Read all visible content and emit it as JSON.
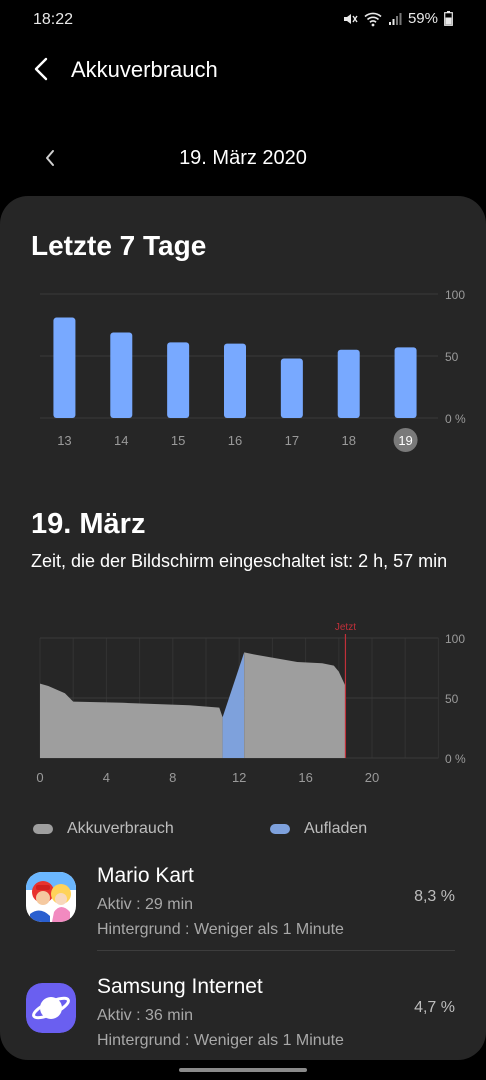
{
  "status_bar": {
    "time": "18:22",
    "battery": "59%"
  },
  "header": {
    "title": "Akkuverbrauch"
  },
  "date_nav": {
    "date": "19. März 2020"
  },
  "weekly": {
    "title": "Letzte 7 Tage"
  },
  "daily": {
    "title": "19. März",
    "screen_time": "Zeit, die der Bildschirm eingeschaltet ist: 2 h, 57 min"
  },
  "legend": {
    "usage": "Akkuverbrauch",
    "charging": "Aufladen"
  },
  "apps": [
    {
      "name": "Mario Kart",
      "active": "Aktiv : 29 min",
      "background": "Hintergrund : Weniger als 1 Minute",
      "percent": "8,3 %"
    },
    {
      "name": "Samsung Internet",
      "active": "Aktiv : 36 min",
      "background": "Hintergrund : Weniger als 1 Minute",
      "percent": "4,7 %"
    }
  ],
  "colors": {
    "bar": "#78a9ff",
    "usage": "#9e9e9e",
    "charging": "#7ea1dc",
    "now_line": "#c0303a"
  },
  "chart_data": [
    {
      "type": "bar",
      "categories": [
        "13",
        "14",
        "15",
        "16",
        "17",
        "18",
        "19"
      ],
      "values": [
        81,
        69,
        61,
        60,
        48,
        55,
        57
      ],
      "ylim": [
        0,
        100
      ],
      "y_ticks": [
        "100",
        "50",
        "0 %"
      ],
      "selected_category": "19",
      "grid": true
    },
    {
      "type": "area",
      "x_ticks": [
        "0",
        "4",
        "8",
        "12",
        "16",
        "20"
      ],
      "y_ticks": [
        "100",
        "50",
        "0 %"
      ],
      "xlim": [
        0,
        24
      ],
      "ylim": [
        0,
        100
      ],
      "now_label": "Jetzt",
      "now_x": 18.4,
      "series": [
        {
          "name": "Akkuverbrauch",
          "points": [
            [
              0,
              62
            ],
            [
              0.5,
              60
            ],
            [
              1.5,
              54
            ],
            [
              2,
              47
            ],
            [
              5,
              46
            ],
            [
              9,
              44
            ],
            [
              10.8,
              42
            ],
            [
              11,
              34
            ],
            [
              11,
              0
            ]
          ]
        },
        {
          "name": "Aufladen",
          "points": [
            [
              11,
              34
            ],
            [
              12.3,
              88
            ]
          ]
        },
        {
          "name": "Akkuverbrauch",
          "points": [
            [
              12.3,
              88
            ],
            [
              13,
              86
            ],
            [
              15.5,
              80
            ],
            [
              17,
              79
            ],
            [
              17.7,
              77
            ],
            [
              18,
              72
            ],
            [
              18.4,
              60
            ]
          ]
        }
      ]
    }
  ]
}
